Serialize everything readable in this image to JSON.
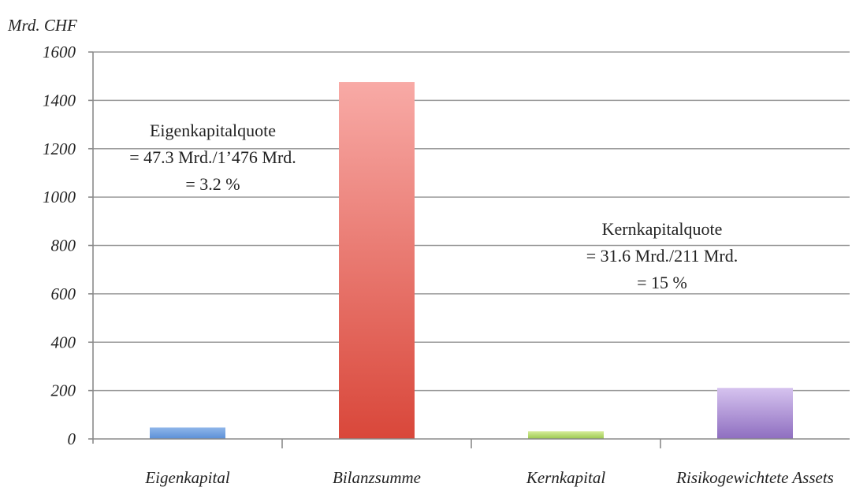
{
  "chart_data": {
    "type": "bar",
    "ylabel": "Mrd. CHF",
    "ylim": [
      0,
      1600
    ],
    "yticks": [
      0,
      200,
      400,
      600,
      800,
      1000,
      1200,
      1400,
      1600
    ],
    "grid": true,
    "categories": [
      "Eigenkapital",
      "Bilanzsumme",
      "Kernkapital",
      "Risikogewichtete Assets"
    ],
    "values": [
      47.3,
      1476,
      31.6,
      211
    ],
    "colors": [
      [
        "#8fb6ea",
        "#5b8fd6"
      ],
      [
        "#f8aaa6",
        "#d9473a"
      ],
      [
        "#d6ec9a",
        "#9bc94e"
      ],
      [
        "#d6c3ef",
        "#8e6ec0"
      ]
    ],
    "annotations": [
      {
        "lines": [
          "Eigenkapitalquote",
          "= 47.3 Mrd./1’476 Mrd.",
          "= 3.2 %"
        ]
      },
      {
        "lines": [
          "Kernkapitalquote",
          "= 31.6 Mrd./211 Mrd.",
          "= 15 %"
        ]
      }
    ]
  }
}
